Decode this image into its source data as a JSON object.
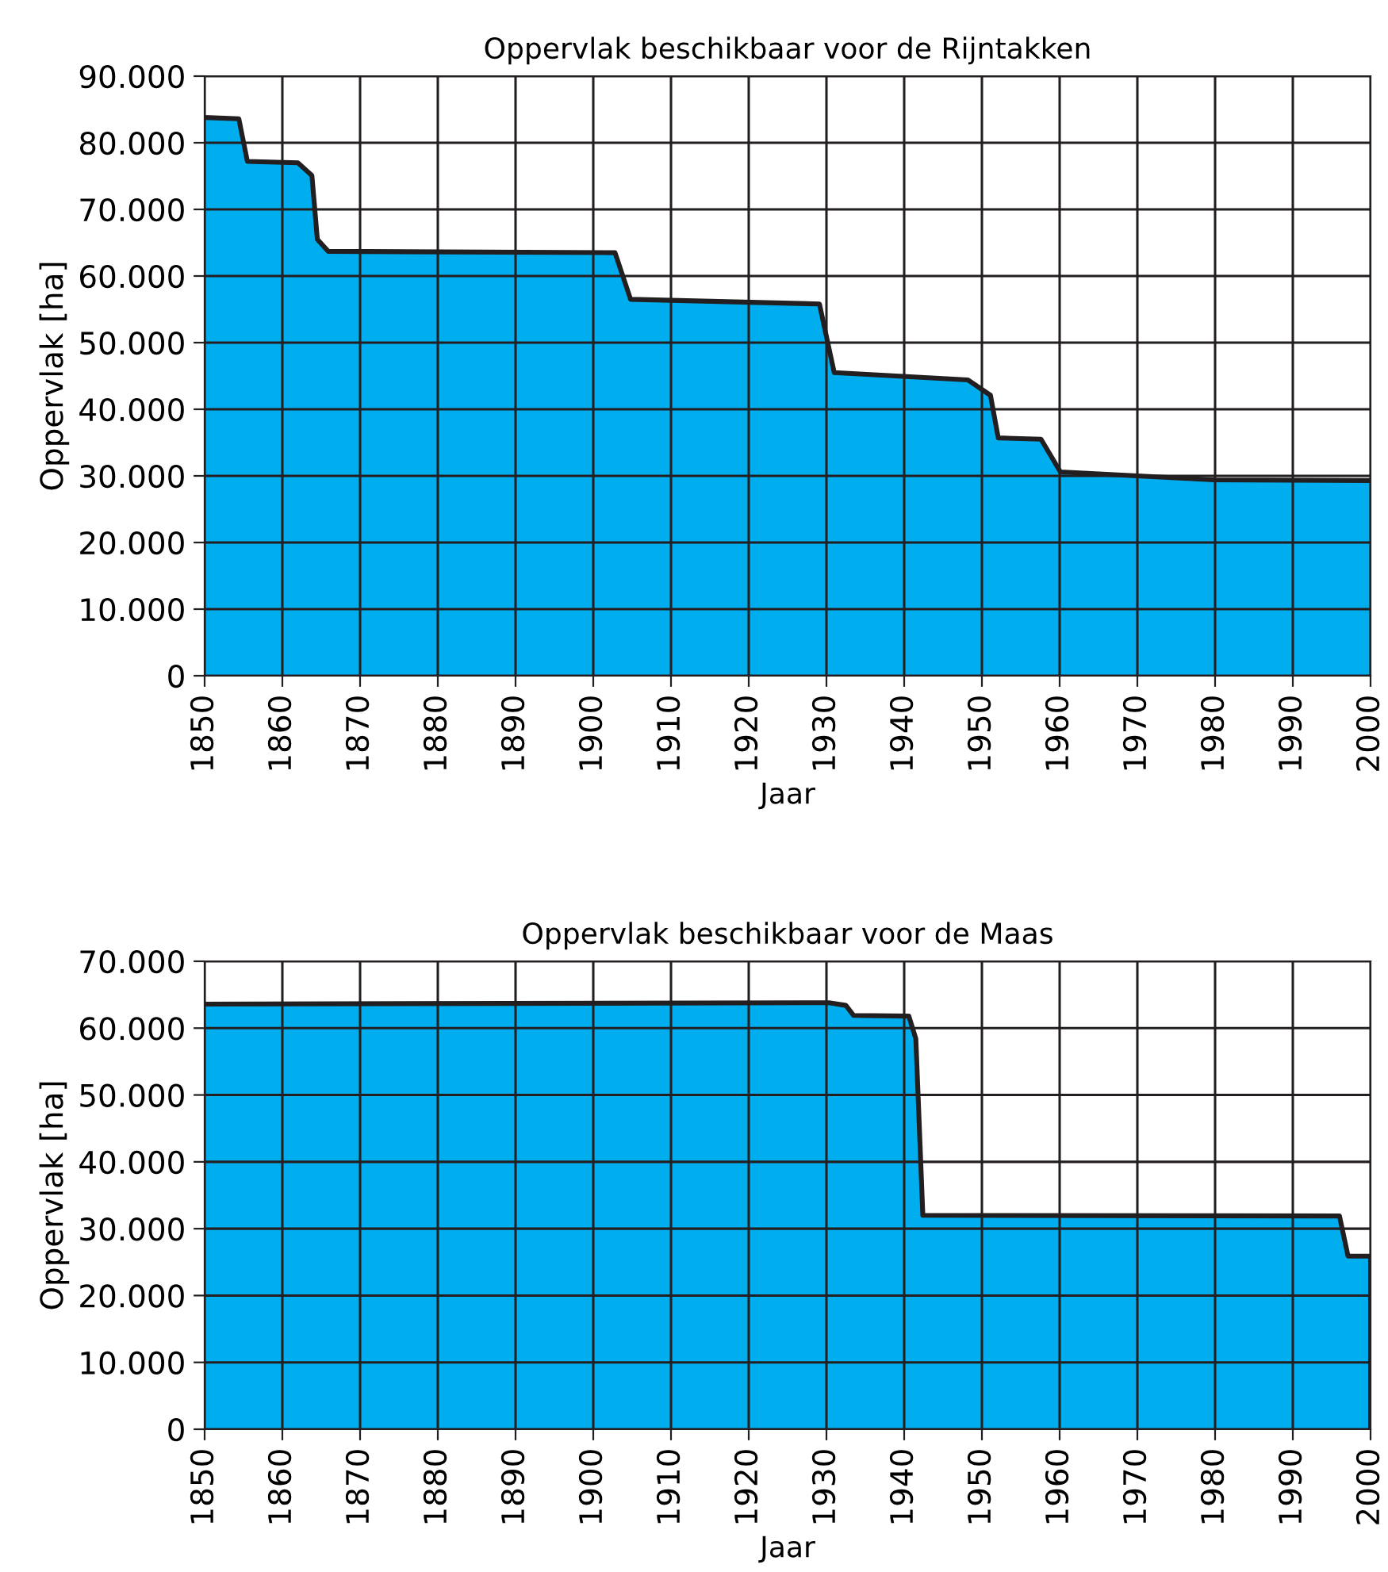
{
  "chart_data": [
    {
      "type": "area",
      "title": "Oppervlak beschikbaar voor de Rijntakken",
      "xlabel": "Jaar",
      "ylabel": "Oppervlak [ha]",
      "grid": true,
      "legend": false,
      "series": [
        {
          "color": "#00aeef",
          "x": [
            1850,
            1854.4,
            1855.5,
            1862,
            1863.8,
            1864.5,
            1865.9,
            1902.8,
            1904.8,
            1929.1,
            1931,
            1948.2,
            1951.1,
            1952.1,
            1957.6,
            1960.1,
            1970,
            1979.9,
            2000
          ],
          "values": [
            83800,
            83600,
            77200,
            77000,
            75100,
            65500,
            63700,
            63500,
            56500,
            55800,
            45500,
            44400,
            42100,
            35700,
            35500,
            30600,
            30000,
            29400,
            29300
          ]
        }
      ],
      "xlim": [
        1850,
        2000
      ],
      "xticks": [
        1850,
        1860,
        1870,
        1880,
        1890,
        1900,
        1910,
        1920,
        1930,
        1940,
        1950,
        1960,
        1970,
        1980,
        1990,
        2000
      ],
      "ylim": [
        0,
        90000
      ],
      "yticks": [
        {
          "value": 0,
          "label": "0"
        },
        {
          "value": 10000,
          "label": "10.000"
        },
        {
          "value": 20000,
          "label": "20.000"
        },
        {
          "value": 30000,
          "label": "30.000"
        },
        {
          "value": 40000,
          "label": "40.000"
        },
        {
          "value": 50000,
          "label": "50.000"
        },
        {
          "value": 60000,
          "label": "60.000"
        },
        {
          "value": 70000,
          "label": "70.000"
        },
        {
          "value": 80000,
          "label": "80.000"
        },
        {
          "value": 90000,
          "label": "90.000"
        }
      ]
    },
    {
      "type": "area",
      "title": "Oppervlak beschikbaar voor de Maas",
      "xlabel": "Jaar",
      "ylabel": "Oppervlak [ha]",
      "grid": true,
      "legend": false,
      "series": [
        {
          "color": "#00aeef",
          "x": [
            1850,
            1930.3,
            1932.5,
            1933.5,
            1940.6,
            1941.5,
            1942.4,
            1996,
            1997.1,
            2000,
            2000
          ],
          "values": [
            63600,
            63800,
            63400,
            61900,
            61800,
            58400,
            32000,
            31900,
            25900,
            25900,
            0
          ]
        }
      ],
      "xlim": [
        1850,
        2000
      ],
      "xticks": [
        1850,
        1860,
        1870,
        1880,
        1890,
        1900,
        1910,
        1920,
        1930,
        1940,
        1950,
        1960,
        1970,
        1980,
        1990,
        2000
      ],
      "ylim": [
        0,
        70000
      ],
      "yticks": [
        {
          "value": 0,
          "label": "0"
        },
        {
          "value": 10000,
          "label": "10.000"
        },
        {
          "value": 20000,
          "label": "20.000"
        },
        {
          "value": 30000,
          "label": "30.000"
        },
        {
          "value": 40000,
          "label": "40.000"
        },
        {
          "value": 50000,
          "label": "50.000"
        },
        {
          "value": 60000,
          "label": "60.000"
        },
        {
          "value": 70000,
          "label": "70.000"
        }
      ]
    }
  ]
}
